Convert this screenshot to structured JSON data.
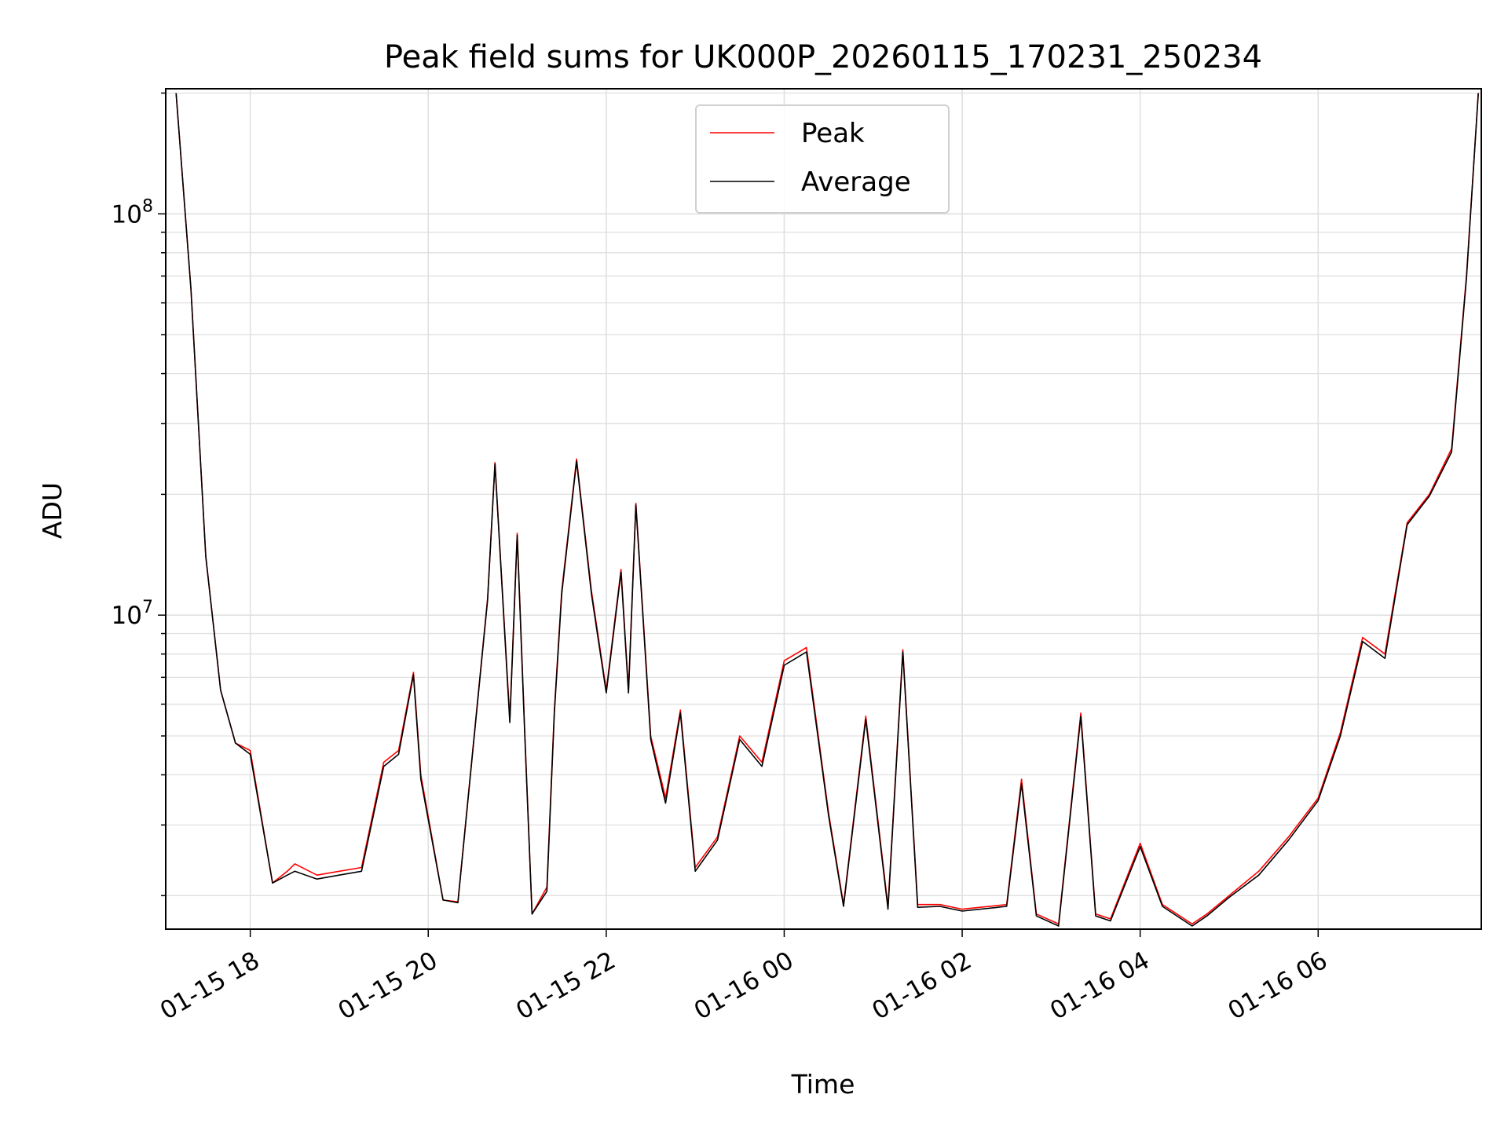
{
  "chart_data": {
    "type": "line",
    "title": "Peak field sums for UK000P_20260115_170231_250234",
    "xlabel": "Time",
    "ylabel": "ADU",
    "y_scale": "log",
    "ylim": [
      1650000,
      205000000
    ],
    "xlim": [
      "01-15 17:03",
      "01-16 07:50"
    ],
    "x_ticks": [
      "01-15 18",
      "01-15 20",
      "01-15 22",
      "01-16 00",
      "01-16 02",
      "01-16 04",
      "01-16 06"
    ],
    "y_ticks": [
      {
        "value": 10000000,
        "label": "10^7",
        "base": "10",
        "exp": "7"
      },
      {
        "value": 100000000,
        "label": "10^8",
        "base": "10",
        "exp": "8"
      }
    ],
    "grid": true,
    "legend_position": "upper center",
    "colors": {
      "peak": "#ff0000",
      "average": "#000000",
      "grid": "#e0e0e0"
    },
    "x": [
      "01-15 17:10",
      "01-15 17:20",
      "01-15 17:30",
      "01-15 17:40",
      "01-15 17:50",
      "01-15 18:00",
      "01-15 18:15",
      "01-15 18:25",
      "01-15 18:30",
      "01-15 18:45",
      "01-15 19:00",
      "01-15 19:15",
      "01-15 19:30",
      "01-15 19:40",
      "01-15 19:50",
      "01-15 19:55",
      "01-15 20:10",
      "01-15 20:20",
      "01-15 20:40",
      "01-15 20:45",
      "01-15 20:55",
      "01-15 21:00",
      "01-15 21:05",
      "01-15 21:10",
      "01-15 21:20",
      "01-15 21:25",
      "01-15 21:30",
      "01-15 21:40",
      "01-15 21:50",
      "01-15 22:00",
      "01-15 22:10",
      "01-15 22:15",
      "01-15 22:20",
      "01-15 22:30",
      "01-15 22:40",
      "01-15 22:50",
      "01-15 23:00",
      "01-15 23:15",
      "01-15 23:30",
      "01-15 23:45",
      "01-16 00:00",
      "01-16 00:15",
      "01-16 00:30",
      "01-16 00:40",
      "01-16 00:55",
      "01-16 01:10",
      "01-16 01:20",
      "01-16 01:30",
      "01-16 01:45",
      "01-16 02:00",
      "01-16 02:30",
      "01-16 02:40",
      "01-16 02:50",
      "01-16 03:05",
      "01-16 03:20",
      "01-16 03:30",
      "01-16 03:40",
      "01-16 04:00",
      "01-16 04:15",
      "01-16 04:35",
      "01-16 04:45",
      "01-16 05:00",
      "01-16 05:20",
      "01-16 05:40",
      "01-16 06:00",
      "01-16 06:15",
      "01-16 06:30",
      "01-16 06:45",
      "01-16 07:00",
      "01-16 07:15",
      "01-16 07:30",
      "01-16 07:40",
      "01-16 07:48"
    ],
    "series": [
      {
        "name": "Peak",
        "values": [
          200000000,
          65000000,
          14000000,
          6500000,
          4800000,
          4600000,
          2150000,
          2300000,
          2400000,
          2250000,
          2300000,
          2350000,
          4300000,
          4600000,
          7200000,
          4000000,
          1950000,
          1930000,
          11000000,
          24000000,
          5500000,
          16000000,
          5200000,
          1800000,
          2100000,
          5800000,
          11500000,
          24500000,
          11500000,
          6500000,
          13000000,
          6500000,
          19000000,
          5000000,
          3500000,
          5800000,
          2350000,
          2800000,
          5000000,
          4300000,
          7700000,
          8300000,
          3200000,
          1900000,
          5600000,
          1880000,
          8200000,
          1900000,
          1900000,
          1850000,
          1900000,
          3900000,
          1800000,
          1700000,
          5700000,
          1800000,
          1750000,
          2700000,
          1900000,
          1700000,
          1800000,
          2000000,
          2300000,
          2800000,
          3500000,
          5100000,
          8800000,
          8000000,
          17000000,
          20000000,
          26000000,
          70000000,
          200000000
        ]
      },
      {
        "name": "Average",
        "values": [
          200000000,
          65000000,
          14000000,
          6500000,
          4800000,
          4500000,
          2150000,
          2250000,
          2300000,
          2200000,
          2250000,
          2300000,
          4200000,
          4500000,
          7100000,
          3900000,
          1950000,
          1920000,
          10900000,
          23800000,
          5400000,
          15800000,
          5100000,
          1800000,
          2050000,
          5700000,
          11300000,
          24200000,
          11300000,
          6400000,
          12800000,
          6400000,
          18800000,
          4900000,
          3400000,
          5700000,
          2300000,
          2750000,
          4900000,
          4200000,
          7500000,
          8100000,
          3150000,
          1880000,
          5500000,
          1850000,
          8100000,
          1870000,
          1880000,
          1830000,
          1880000,
          3800000,
          1780000,
          1680000,
          5600000,
          1780000,
          1730000,
          2650000,
          1880000,
          1680000,
          1780000,
          1980000,
          2250000,
          2750000,
          3450000,
          5000000,
          8600000,
          7800000,
          16800000,
          19800000,
          25500000,
          69000000,
          200000000
        ]
      }
    ]
  }
}
